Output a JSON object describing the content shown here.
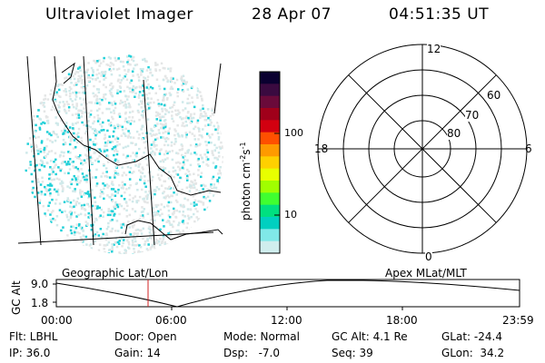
{
  "header": {
    "instrument": "Ultraviolet Imager",
    "date": "28 Apr 07",
    "time": "04:51:35 UT"
  },
  "colorbar": {
    "unit_prefix": "photon cm",
    "unit_exp1": "-2",
    "unit_mid": "s",
    "unit_exp2": "-1",
    "ticks": [
      "100",
      "10"
    ],
    "colors": [
      "#0a0030",
      "#3a0a40",
      "#6a0a3a",
      "#a0001a",
      "#d20010",
      "#ff5000",
      "#ff9a00",
      "#ffd000",
      "#e8ff00",
      "#a0ff00",
      "#40ff30",
      "#00e080",
      "#00d0c0",
      "#80e8e8",
      "#d0eeee"
    ]
  },
  "geo_panel": {
    "label": "Geographic Lat/Lon",
    "dot_color": "#20d0d8"
  },
  "polar_panel": {
    "label": "Apex MLat/MLT",
    "mlt_labels": {
      "top": "12",
      "left": "18",
      "right": "6",
      "bottom": "0"
    },
    "mlat_labels": [
      "60",
      "70",
      "80"
    ]
  },
  "orbit_plot": {
    "ylabel": "GC Alt",
    "y_ticks": [
      "9.0",
      "1.8"
    ],
    "x_ticks": [
      "00:00",
      "06:00",
      "12:00",
      "18:00",
      "23:59"
    ],
    "marker_color": "#d02020"
  },
  "status": {
    "flt": "Flt: LBHL",
    "door": "Door: Open",
    "mode": "Mode: Normal",
    "gcalt": "GC Alt: 4.1 Re",
    "glat": "GLat: -24.4",
    "ip": "IP: 36.0",
    "gain": "Gain: 14",
    "dsp": "Dsp:   -7.0",
    "seq": "Seq: 39",
    "glon": "GLon:  34.2"
  }
}
